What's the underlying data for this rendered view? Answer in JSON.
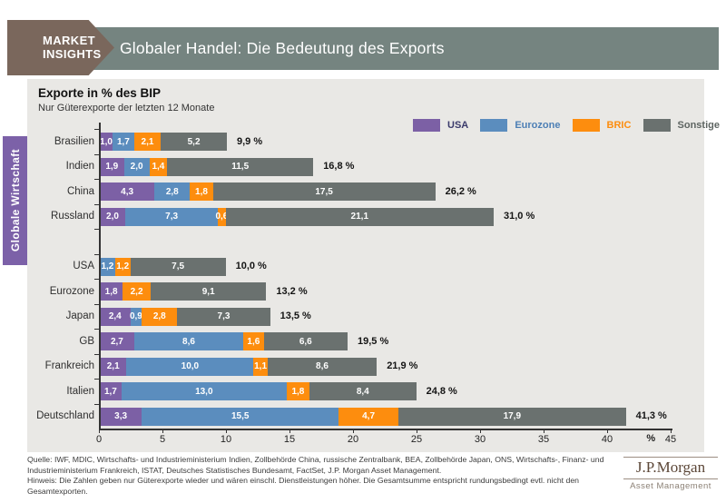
{
  "badge": {
    "line1": "MARKET",
    "line2": "INSIGHTS"
  },
  "header": {
    "title": "Globaler Handel: Die Bedeutung des Exports"
  },
  "side_tab": {
    "label": "Globale Wirtschaft"
  },
  "colors": {
    "usa": "#7c60a5",
    "eurozone": "#5b8dbe",
    "bric": "#fd8d0e",
    "sonstige": "#6a716f",
    "header_bar": "#758480",
    "badge": "#7a675c",
    "side_tab": "#7c61a8",
    "panel_bg": "#e9e8e5"
  },
  "chart_data": {
    "type": "bar",
    "orientation": "horizontal",
    "stacked": true,
    "title": "Exporte in % des BIP",
    "subtitle": "Nur Güterexporte der letzten 12 Monate",
    "xlabel": "%",
    "xlim": [
      0,
      45
    ],
    "x_ticks": [
      0,
      5,
      10,
      15,
      20,
      25,
      30,
      35,
      40,
      45
    ],
    "x_axis_suffix": "%",
    "grid": false,
    "legend_position": "top-right",
    "series_order": [
      "USA",
      "Eurozone",
      "BRIC",
      "Sonstige"
    ],
    "legend": [
      {
        "label": "USA",
        "key": "usa",
        "text_color": "#3a3a6b"
      },
      {
        "label": "Eurozone",
        "key": "eurozone",
        "text_color": "#4d7fb5"
      },
      {
        "label": "BRIC",
        "key": "bric",
        "text_color": "#fd8d0e"
      },
      {
        "label": "Sonstige",
        "key": "sonstige",
        "text_color": "#5e6562"
      }
    ],
    "rows": [
      {
        "category": "Brasilien",
        "segments": [
          [
            "usa",
            "1,0"
          ],
          [
            "eurozone",
            "1,7"
          ],
          [
            "bric",
            "2,1"
          ],
          [
            "sonstige",
            "5,2"
          ]
        ],
        "total": "9,9 %"
      },
      {
        "category": "Indien",
        "segments": [
          [
            "usa",
            "1,9"
          ],
          [
            "eurozone",
            "2,0"
          ],
          [
            "bric",
            "1,4"
          ],
          [
            "sonstige",
            "11,5"
          ]
        ],
        "total": "16,8 %"
      },
      {
        "category": "China",
        "segments": [
          [
            "usa",
            "4,3"
          ],
          [
            "eurozone",
            "2,8"
          ],
          [
            "bric",
            "1,8"
          ],
          [
            "sonstige",
            "17,5"
          ]
        ],
        "total": "26,2 %"
      },
      {
        "category": "Russland",
        "segments": [
          [
            "usa",
            "2,0"
          ],
          [
            "eurozone",
            "7,3"
          ],
          [
            "bric",
            "0,6"
          ],
          [
            "sonstige",
            "21,1"
          ]
        ],
        "total": "31,0 %"
      },
      {
        "gap": true
      },
      {
        "category": "USA",
        "segments": [
          [
            "eurozone",
            "1,2"
          ],
          [
            "bric",
            "1,2"
          ],
          [
            "sonstige",
            "7,5"
          ]
        ],
        "total": "10,0 %"
      },
      {
        "category": "Eurozone",
        "segments": [
          [
            "usa",
            "1,8"
          ],
          [
            "bric",
            "2,2"
          ],
          [
            "sonstige",
            "9,1"
          ]
        ],
        "total": "13,2 %"
      },
      {
        "category": "Japan",
        "segments": [
          [
            "usa",
            "2,4"
          ],
          [
            "eurozone",
            "0,9"
          ],
          [
            "bric",
            "2,8"
          ],
          [
            "sonstige",
            "7,3"
          ]
        ],
        "total": "13,5 %"
      },
      {
        "category": "GB",
        "segments": [
          [
            "usa",
            "2,7"
          ],
          [
            "eurozone",
            "8,6"
          ],
          [
            "bric",
            "1,6"
          ],
          [
            "sonstige",
            "6,6"
          ]
        ],
        "total": "19,5 %"
      },
      {
        "category": "Frankreich",
        "segments": [
          [
            "usa",
            "2,1"
          ],
          [
            "eurozone",
            "10,0"
          ],
          [
            "bric",
            "1,1"
          ],
          [
            "sonstige",
            "8,6"
          ]
        ],
        "total": "21,9 %"
      },
      {
        "category": "Italien",
        "segments": [
          [
            "usa",
            "1,7"
          ],
          [
            "eurozone",
            "13,0"
          ],
          [
            "bric",
            "1,8"
          ],
          [
            "sonstige",
            "8,4"
          ]
        ],
        "total": "24,8 %"
      },
      {
        "category": "Deutschland",
        "segments": [
          [
            "usa",
            "3,3"
          ],
          [
            "eurozone",
            "15,5"
          ],
          [
            "bric",
            "4,7"
          ],
          [
            "sonstige",
            "17,9"
          ]
        ],
        "total": "41,3 %"
      }
    ]
  },
  "footer": {
    "source": "Quelle: IWF, MDIC, Wirtschafts- und Industrieministerium Indien, Zollbehörde China, russische Zentralbank, BEA, Zollbehörde Japan, ONS, Wirtschafts-, Finanz- und Industrieministerium Frankreich, ISTAT, Deutsches Statistisches Bundesamt, FactSet, J.P. Morgan Asset Management.",
    "note": "Hinweis: Die Zahlen geben nur Güterexporte wieder und wären einschl. Dienstleistungen höher. Die Gesamtsumme entspricht rundungsbedingt evtl. nicht den Gesamtexporten.",
    "logo_name": "J.P.Morgan",
    "logo_sub": "Asset Management"
  }
}
